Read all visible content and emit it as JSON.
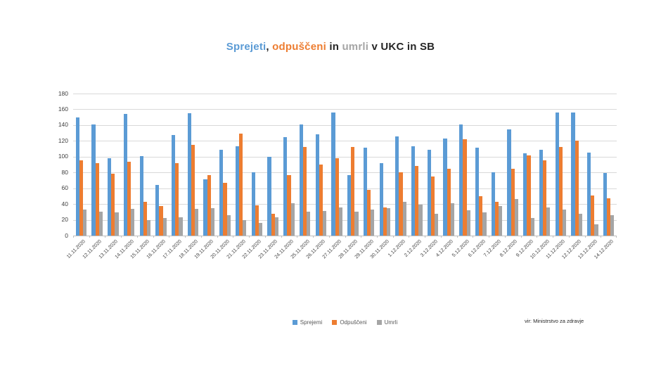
{
  "title": {
    "segments": [
      {
        "text": "Sprejeti",
        "color": "#5b9bd5"
      },
      {
        "text": ", ",
        "color": "#262626"
      },
      {
        "text": "odpuščeni",
        "color": "#ed7d31"
      },
      {
        "text": " in ",
        "color": "#262626"
      },
      {
        "text": "umrli",
        "color": "#a5a5a5"
      },
      {
        "text": " v UKC in SB",
        "color": "#262626"
      }
    ]
  },
  "chart_data": {
    "type": "bar",
    "title": "Sprejeti, odpuščeni in umrli v UKC in SB",
    "categories": [
      "11.11.2020",
      "12.11.2020",
      "13.11.2020",
      "14.11.2020",
      "15.11.2020",
      "16.11.2020",
      "17.11.2020",
      "18.11.2020",
      "19.11.2020",
      "20.11.2020",
      "21.11.2020",
      "22.11.2020",
      "23.11.2020",
      "24.11.2020",
      "25.11.2020",
      "26.11.2020",
      "27.11.2020",
      "28.11.2020",
      "29.11.2020",
      "30.11.2020",
      "1.12.2020",
      "2.12.2020",
      "3.12.2020",
      "4.12.2020",
      "5.12.2020",
      "6.12.2020",
      "7.12.2020",
      "8.12.2020",
      "9.12.2020",
      "10.12.2020",
      "11.12.2020",
      "12.12.2020",
      "13.12.2020",
      "14.12.2020"
    ],
    "series": [
      {
        "name": "Sprejemi",
        "color": "#5b9bd5",
        "values": [
          150,
          141,
          98,
          154,
          101,
          64,
          127,
          155,
          71,
          109,
          113,
          80,
          100,
          125,
          141,
          128,
          156,
          77,
          111,
          92,
          126,
          113,
          109,
          123,
          141,
          111,
          80,
          135,
          104,
          109,
          156,
          156,
          105,
          79
        ]
      },
      {
        "name": "Odpuščeni",
        "color": "#ed7d31",
        "values": [
          95,
          92,
          78,
          94,
          43,
          37,
          92,
          115,
          77,
          67,
          129,
          38,
          28,
          77,
          112,
          90,
          98,
          112,
          58,
          36,
          80,
          88,
          75,
          85,
          122,
          50,
          43,
          85,
          102,
          95,
          112,
          120,
          51,
          47
        ]
      },
      {
        "name": "Umrli",
        "color": "#a5a5a5",
        "values": [
          33,
          30,
          29,
          34,
          20,
          22,
          23,
          34,
          35,
          26,
          20,
          16,
          23,
          41,
          30,
          31,
          36,
          30,
          33,
          35,
          43,
          39,
          28,
          41,
          32,
          29,
          37,
          46,
          22,
          36,
          33,
          28,
          14,
          26
        ]
      }
    ],
    "xlabel": "",
    "ylabel": "",
    "ylim": [
      0,
      180
    ],
    "ytick_step": 20,
    "grid": true,
    "legend_position": "bottom"
  },
  "source_note": "vir: Ministrstvo za zdravje",
  "colors": {
    "gridline": "#d9d9d9",
    "axis_line": "#bfbfbf",
    "axis_text": "#404040",
    "legend_text": "#595959"
  }
}
